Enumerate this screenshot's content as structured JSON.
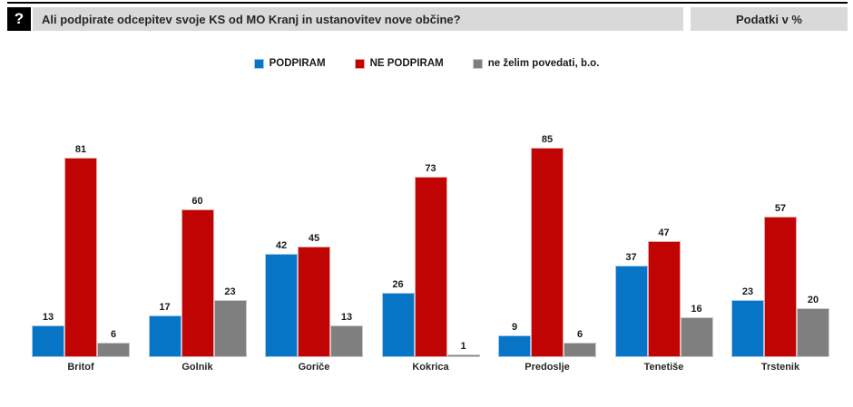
{
  "header": {
    "question_mark": "?",
    "question": "Ali podpirate odcepitev svoje KS od MO Kranj in ustanovitev nove občine?",
    "data_note": "Podatki v %"
  },
  "colors": {
    "header_bar": "#d9d9d9",
    "support": "#0874c6",
    "support_border": "#a3c9ec",
    "oppose": "#c00404",
    "oppose_border": "#e4a6a6",
    "no_answer": "#7f7f7f",
    "no_answer_border": "#cacacd"
  },
  "chart_data": {
    "type": "bar",
    "title": "Ali podpirate odcepitev svoje KS od MO Kranj in ustanovitev nove občine?",
    "unit": "%",
    "categories": [
      "Britof",
      "Golnik",
      "Goriče",
      "Kokrica",
      "Predoslje",
      "Tenetiše",
      "Trstenik"
    ],
    "series": [
      {
        "name": "PODPIRAM",
        "color": "#0874c6",
        "border_color": "#a3c9ec",
        "values": [
          13,
          17,
          42,
          26,
          9,
          37,
          23
        ]
      },
      {
        "name": "NE PODPIRAM",
        "color": "#c00404",
        "border_color": "#e4a6a6",
        "values": [
          81,
          60,
          45,
          73,
          85,
          47,
          57
        ]
      },
      {
        "name": "ne želim povedati, b.o.",
        "color": "#7f7f7f",
        "border_color": "#cacacd",
        "values": [
          6,
          23,
          13,
          1,
          6,
          16,
          20
        ]
      }
    ],
    "ylim": [
      0,
      90
    ],
    "grid": false,
    "axes_visible": false,
    "value_labels": true,
    "legend_position": "top-center",
    "xlabel": "",
    "ylabel": ""
  }
}
